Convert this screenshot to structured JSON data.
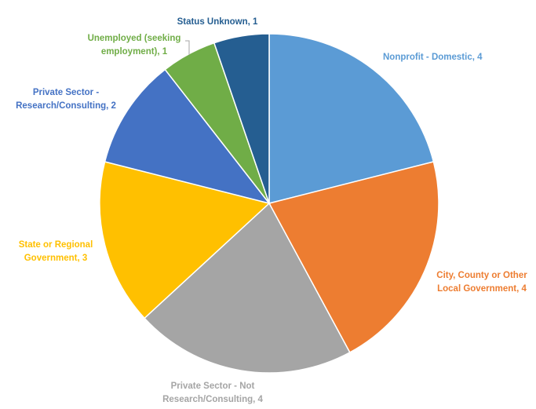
{
  "chart_data": {
    "type": "pie",
    "title": "",
    "slices": [
      {
        "label": "Nonprofit - Domestic",
        "value": 4,
        "data_label": "Nonprofit - Domestic, 4",
        "color": "#5b9bd5"
      },
      {
        "label": "City, County or Other Local Government",
        "value": 4,
        "data_label": "City, County or Other Local Government, 4",
        "color": "#ed7d31"
      },
      {
        "label": "Private Sector - Not Research/Consulting",
        "value": 4,
        "data_label": "Private Sector - Not Research/Consulting, 4",
        "color": "#a5a5a5"
      },
      {
        "label": "State or Regional Government",
        "value": 3,
        "data_label": "State or Regional Government, 3",
        "color": "#ffc000"
      },
      {
        "label": "Private Sector - Research/Consulting",
        "value": 2,
        "data_label": "Private Sector - Research/Consulting, 2",
        "color": "#4472c4"
      },
      {
        "label": "Unemployed (seeking employment)",
        "value": 1,
        "data_label": "Unemployed (seeking employment), 1",
        "color": "#70ad47"
      },
      {
        "label": "Status Unknown",
        "value": 1,
        "data_label": "Status Unknown, 1",
        "color": "#255e91"
      }
    ],
    "legend": "none"
  }
}
